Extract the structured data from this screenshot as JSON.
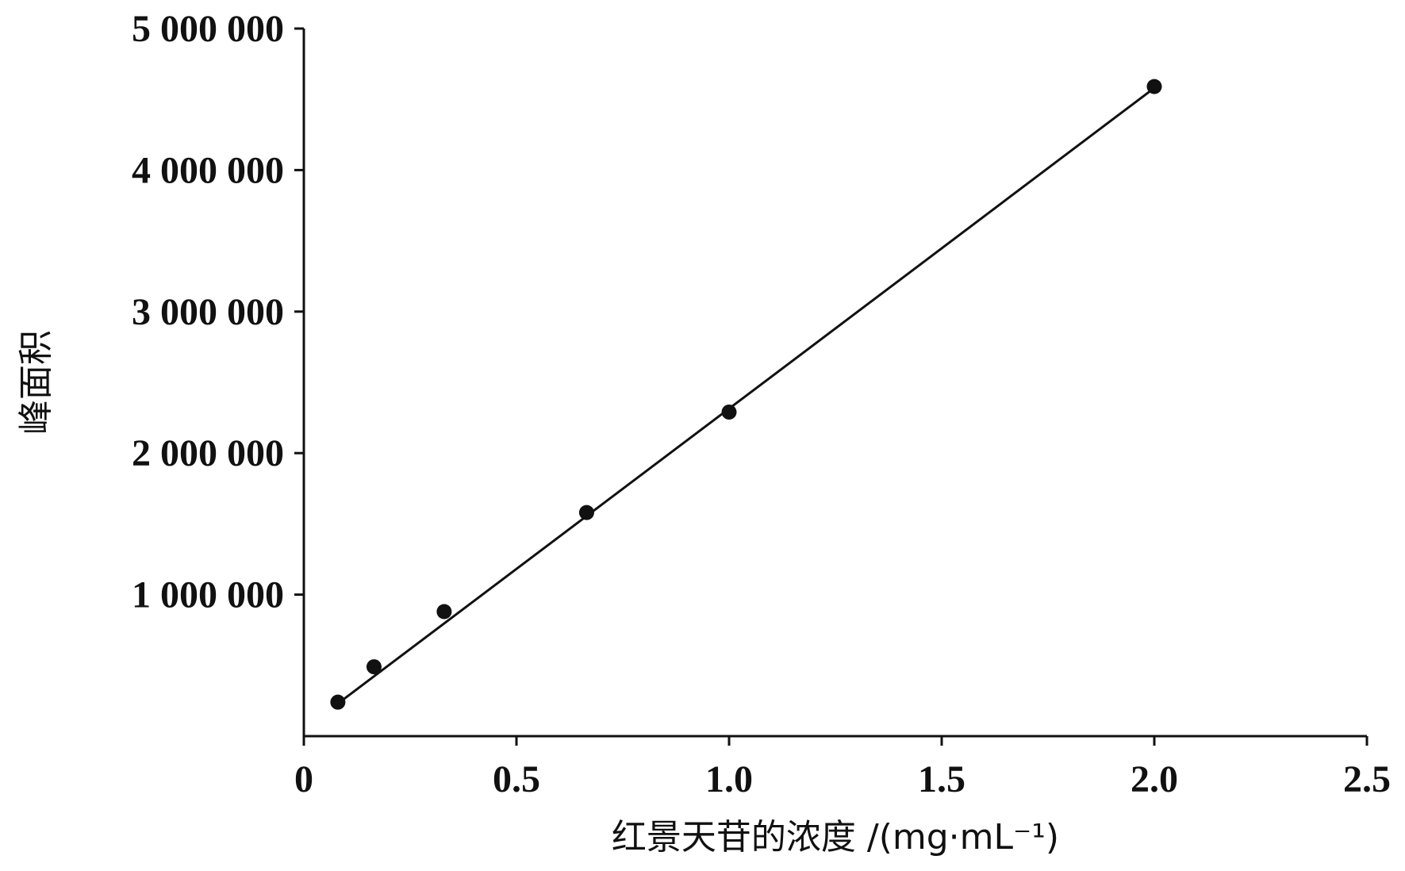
{
  "chart_data": {
    "type": "scatter",
    "xlabel": "红景天苷的浓度 /(mg·mL⁻¹)",
    "ylabel": "峰面积",
    "xlim": [
      0,
      2.5
    ],
    "ylim": [
      0,
      5000000
    ],
    "x_ticks": [
      {
        "value": 0,
        "label": "0"
      },
      {
        "value": 0.5,
        "label": "0.5"
      },
      {
        "value": 1.0,
        "label": "1.0"
      },
      {
        "value": 1.5,
        "label": "1.5"
      },
      {
        "value": 2.0,
        "label": "2.0"
      },
      {
        "value": 2.5,
        "label": "2.5"
      }
    ],
    "y_ticks": [
      {
        "value": 1000000,
        "label": "1 000 000"
      },
      {
        "value": 2000000,
        "label": "2 000 000"
      },
      {
        "value": 3000000,
        "label": "3 000 000"
      },
      {
        "value": 4000000,
        "label": "4 000 000"
      },
      {
        "value": 5000000,
        "label": "5 000 000"
      }
    ],
    "points": [
      {
        "x": 0.08,
        "y": 240000
      },
      {
        "x": 0.165,
        "y": 490000
      },
      {
        "x": 0.33,
        "y": 880000
      },
      {
        "x": 0.665,
        "y": 1580000
      },
      {
        "x": 1.0,
        "y": 2290000
      },
      {
        "x": 2.0,
        "y": 4590000
      }
    ],
    "fit_line": {
      "x": [
        0.08,
        2.0
      ],
      "y": [
        230000,
        4580000
      ]
    },
    "grid": false,
    "legend": "none",
    "colors": {
      "ink": "#111111",
      "background": "#ffffff"
    }
  }
}
